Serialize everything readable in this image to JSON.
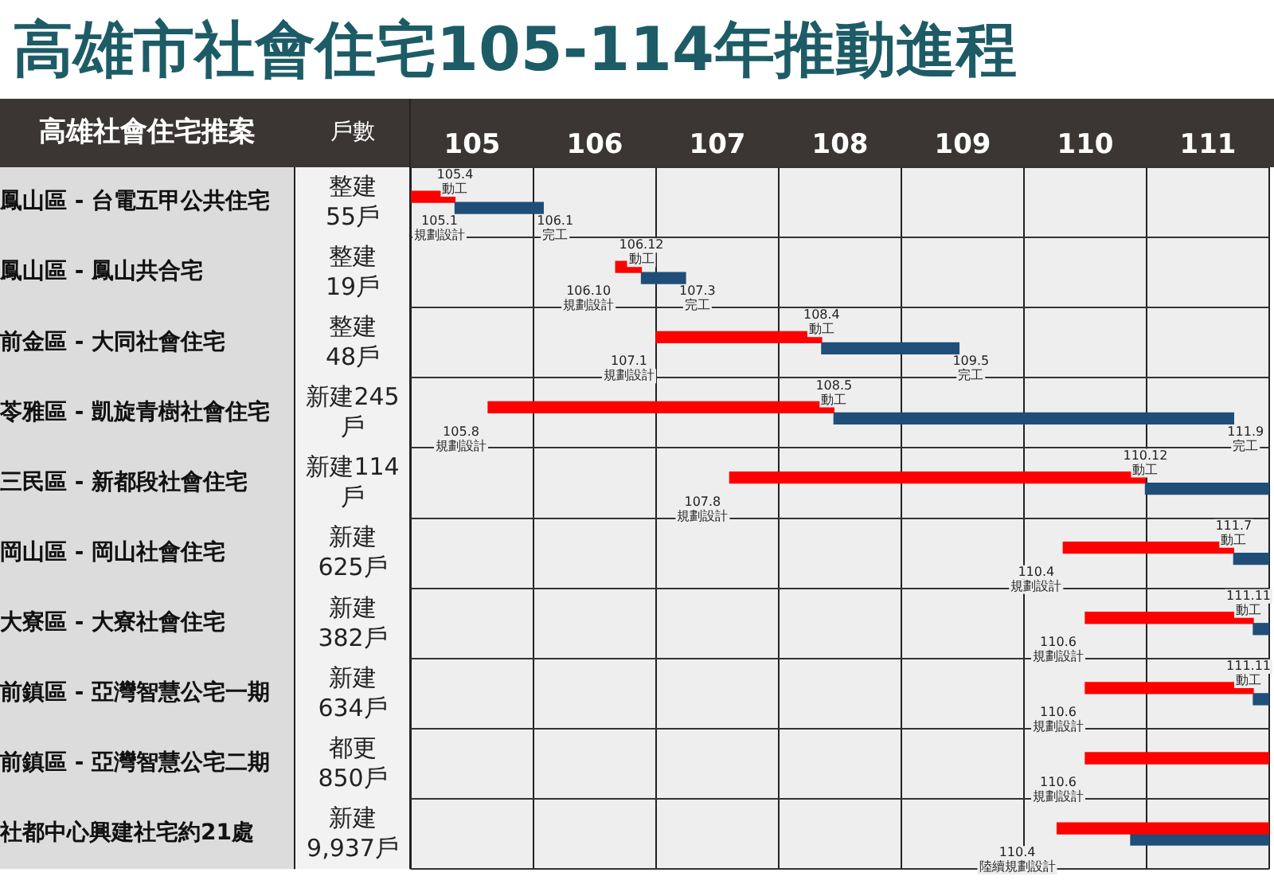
{
  "chart_data": {
    "type": "bar",
    "orientation": "horizontal",
    "title": "高雄市社會住宅105-114年推動進程",
    "ylabel": "高雄社會住宅推案",
    "categories": [
      "鳳山區 - 台電五甲公共住宅",
      "鳳山區 - 鳳山共合宅",
      "前金區 - 大同社會住宅",
      "苓雅區 - 凱旋青樹社會住宅",
      "三民區 - 新都段社會住宅",
      "岡山區 - 岡山社會住宅",
      "大寮區 - 大寮社會住宅",
      "前鎮區 - 亞灣智慧公宅一期",
      "前鎮區 - 亞灣智慧公宅二期",
      "社都中心興建社宅約21處"
    ],
    "series": [
      {
        "color": "#ff0000",
        "base": [
          105.0,
          106.67,
          107.0,
          105.63,
          107.6,
          110.32,
          110.5,
          110.5,
          110.5,
          110.27
        ],
        "values": [
          0.36,
          0.21,
          1.35,
          2.82,
          3.39,
          1.39,
          1.37,
          1.37,
          1.5,
          1.73
        ]
      },
      {
        "color": "#1f4e79",
        "base": [
          105.36,
          106.88,
          108.35,
          108.45,
          110.99,
          111.71,
          111.87,
          111.87,
          null,
          110.87
        ],
        "values": [
          0.72,
          0.36,
          1.12,
          3.26,
          1.01,
          0.29,
          0.13,
          0.13,
          null,
          1.13
        ]
      }
    ],
    "xlim": [
      105,
      112
    ],
    "xticks": [
      {
        "value": 105,
        "label": null
      },
      {
        "value": 105.5,
        "label": "105"
      },
      {
        "value": 106,
        "label": null
      },
      {
        "value": 106.5,
        "label": "106"
      },
      {
        "value": 107,
        "label": null
      },
      {
        "value": 107.5,
        "label": "107"
      },
      {
        "value": 108,
        "label": null
      },
      {
        "value": 108.5,
        "label": "108"
      },
      {
        "value": 109,
        "label": null
      },
      {
        "value": 109.5,
        "label": "109"
      },
      {
        "value": 110,
        "label": null
      },
      {
        "value": 110.5,
        "label": "110"
      },
      {
        "value": 111,
        "label": null
      },
      {
        "value": 111.5,
        "label": "111"
      },
      {
        "value": 112,
        "label": null
      }
    ],
    "grid": true,
    "annotations": [
      "戶數",
      "整建\n55戶",
      "整建\n19戶",
      "整建\n48戶",
      "新建245\n戶",
      "新建114\n戶",
      "新建\n625戶",
      "新建\n382戶",
      "新建\n634戶",
      "都更\n850戶",
      "新建\n9,937戶",
      {
        "text": "105.1\n規劃設計",
        "x": 105.0,
        "y": "鳳山區 - 台電五甲公共住宅"
      },
      {
        "text": "105.4\n動工",
        "x": 105.36,
        "y": "鳳山區 - 台電五甲公共住宅"
      },
      {
        "text": "106.1\n完工",
        "x": 106.08,
        "y": "鳳山區 - 台電五甲公共住宅"
      },
      {
        "text": "106.10\n規劃設計",
        "x": 106.67,
        "y": "鳳山區 - 鳳山共合宅"
      },
      {
        "text": "106.12\n動工",
        "x": 106.88,
        "y": "鳳山區 - 鳳山共合宅"
      },
      {
        "text": "107.3\n完工",
        "x": 107.24,
        "y": "鳳山區 - 鳳山共合宅"
      },
      {
        "text": "107.1\n規劃設計",
        "x": 107.0,
        "y": "前金區 - 大同社會住宅"
      },
      {
        "text": "108.4\n動工",
        "x": 108.35,
        "y": "前金區 - 大同社會住宅"
      },
      {
        "text": "109.5\n完工",
        "x": 109.47,
        "y": "前金區 - 大同社會住宅"
      },
      {
        "text": "105.8\n規劃設計",
        "x": 105.63,
        "y": "苓雅區 - 凱旋青樹社會住宅"
      },
      {
        "text": "108.5\n動工",
        "x": 108.45,
        "y": "苓雅區 - 凱旋青樹社會住宅"
      },
      {
        "text": "111.9\n完工",
        "x": 111.71,
        "y": "苓雅區 - 凱旋青樹社會住宅"
      },
      {
        "text": "107.8\n規劃設計",
        "x": 107.6,
        "y": "三民區 - 新都段社會住宅"
      },
      {
        "text": "110.12\n動工",
        "x": 110.99,
        "y": "三民區 - 新都段社會住宅"
      },
      {
        "text": "110.4\n規劃設計",
        "x": 110.32,
        "y": "岡山區 - 岡山社會住宅"
      },
      {
        "text": "111.7\n動工",
        "x": 111.71,
        "y": "岡山區 - 岡山社會住宅"
      },
      {
        "text": "110.6\n規劃設計",
        "x": 110.5,
        "y": "大寮區 - 大寮社會住宅"
      },
      {
        "text": "111.11\n動工",
        "x": 111.87,
        "y": "大寮區 - 大寮社會住宅"
      },
      {
        "text": "110.6\n規劃設計",
        "x": 110.5,
        "y": "前鎮區 - 亞灣智慧公宅一期"
      },
      {
        "text": "111.11\n動工",
        "x": 111.87,
        "y": "前鎮區 - 亞灣智慧公宅一期"
      },
      {
        "text": "110.6\n規劃設計",
        "x": 110.5,
        "y": "前鎮區 - 亞灣智慧公宅二期"
      },
      {
        "text": "110.4\n陸續規劃設計",
        "x": 110.27,
        "y": "社都中心興建社宅約21處"
      }
    ]
  }
}
